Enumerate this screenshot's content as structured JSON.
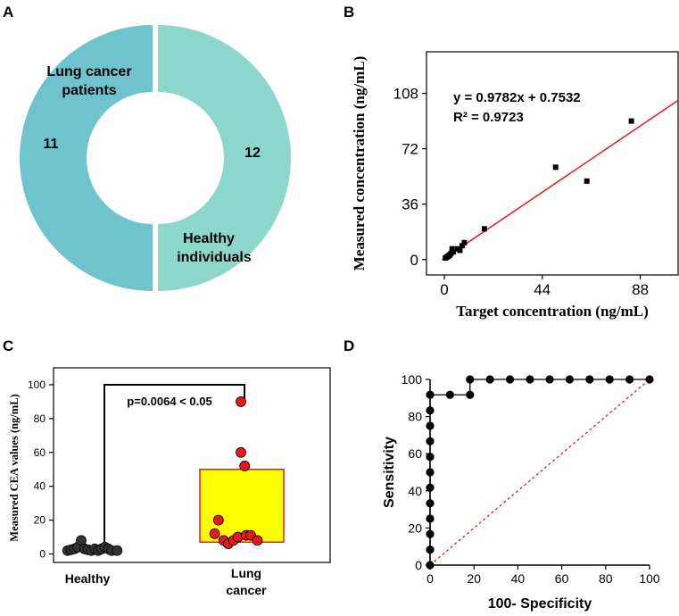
{
  "chart_data": [
    {
      "panel": "A",
      "type": "pie",
      "variant": "donut",
      "slices": [
        {
          "label_line1": "Lung cancer",
          "label_line2": "patients",
          "value": 11,
          "value_text": "11",
          "color": "#6EC3CD"
        },
        {
          "label_line1": "Healthy",
          "label_line2": "individuals",
          "value": 12,
          "value_text": "12",
          "color": "#8DD6CB"
        }
      ]
    },
    {
      "panel": "B",
      "type": "scatter",
      "xlabel": "Target concentration (ng/mL)",
      "ylabel": "Measured concentration (ng/mL)",
      "xlim": [
        -8,
        105
      ],
      "ylim": [
        -10,
        135
      ],
      "xticks": [
        0,
        44,
        88
      ],
      "yticks": [
        0,
        36,
        72,
        108
      ],
      "equation": "y = 0.9782x + 0.7532",
      "r2": "R² = 0.9723",
      "fit": {
        "slope": 0.9782,
        "intercept": 0.7532,
        "color": "#E8191B"
      },
      "points": [
        {
          "x": 0.5,
          "y": 1
        },
        {
          "x": 1,
          "y": 1.5
        },
        {
          "x": 1.5,
          "y": 2
        },
        {
          "x": 2,
          "y": 2.5
        },
        {
          "x": 2.5,
          "y": 3
        },
        {
          "x": 3,
          "y": 4
        },
        {
          "x": 4,
          "y": 5
        },
        {
          "x": 3.5,
          "y": 7
        },
        {
          "x": 6,
          "y": 7
        },
        {
          "x": 7,
          "y": 6
        },
        {
          "x": 8,
          "y": 9
        },
        {
          "x": 9,
          "y": 11
        },
        {
          "x": 18,
          "y": 20
        },
        {
          "x": 50,
          "y": 60
        },
        {
          "x": 64,
          "y": 51
        },
        {
          "x": 84,
          "y": 90
        }
      ]
    },
    {
      "panel": "C",
      "type": "scatter",
      "xlabel_categories": [
        {
          "line1": "Healthy",
          "line2": ""
        },
        {
          "line1": "Lung",
          "line2": "cancer"
        }
      ],
      "ylabel": "Measured CEA values (ng/mL)",
      "ylim": [
        -5,
        110
      ],
      "yticks": [
        0,
        20,
        40,
        60,
        80,
        100
      ],
      "p_value_text": "p=0.0064 < 0.05",
      "box": {
        "group": "Lung cancer",
        "low": 7,
        "high": 50,
        "fill": "#FFFF00",
        "stroke": "#E8191B"
      },
      "groups": [
        {
          "name": "Healthy",
          "color": "#333333",
          "points": [
            {
              "x": 0.05,
              "y": 2
            },
            {
              "x": 0.1,
              "y": 2.5
            },
            {
              "x": 0.15,
              "y": 3
            },
            {
              "x": 0.2,
              "y": 4
            },
            {
              "x": 0.25,
              "y": 8
            },
            {
              "x": 0.3,
              "y": 3
            },
            {
              "x": 0.35,
              "y": 2.5
            },
            {
              "x": 0.4,
              "y": 2
            },
            {
              "x": 0.45,
              "y": 3
            },
            {
              "x": 0.5,
              "y": 2
            },
            {
              "x": 0.55,
              "y": 3
            },
            {
              "x": 0.6,
              "y": 4
            },
            {
              "x": 0.65,
              "y": 3
            },
            {
              "x": 0.7,
              "y": 2
            },
            {
              "x": 0.78,
              "y": 2
            }
          ]
        },
        {
          "name": "Lung cancer",
          "color": "#E8191B",
          "points": [
            {
              "x": 0.15,
              "y": 12
            },
            {
              "x": 0.2,
              "y": 20
            },
            {
              "x": 0.27,
              "y": 8
            },
            {
              "x": 0.33,
              "y": 6
            },
            {
              "x": 0.4,
              "y": 8
            },
            {
              "x": 0.46,
              "y": 10
            },
            {
              "x": 0.5,
              "y": 90
            },
            {
              "x": 0.5,
              "y": 60
            },
            {
              "x": 0.55,
              "y": 52
            },
            {
              "x": 0.57,
              "y": 11
            },
            {
              "x": 0.63,
              "y": 11
            },
            {
              "x": 0.72,
              "y": 8
            }
          ]
        }
      ]
    },
    {
      "panel": "D",
      "type": "line",
      "xlabel": "100- Specificity",
      "ylabel": "Sensitivity",
      "xlim": [
        0,
        100
      ],
      "ylim": [
        0,
        100
      ],
      "xticks": [
        0,
        20,
        40,
        60,
        80,
        100
      ],
      "yticks": [
        0,
        20,
        40,
        60,
        80,
        100
      ],
      "roc_points": [
        {
          "x": 0,
          "y": 0
        },
        {
          "x": 0,
          "y": 8.3
        },
        {
          "x": 0,
          "y": 16.7
        },
        {
          "x": 0,
          "y": 25
        },
        {
          "x": 0,
          "y": 33.3
        },
        {
          "x": 0,
          "y": 41.7
        },
        {
          "x": 0,
          "y": 50
        },
        {
          "x": 0,
          "y": 58.3
        },
        {
          "x": 0,
          "y": 66.7
        },
        {
          "x": 0,
          "y": 75
        },
        {
          "x": 0,
          "y": 83.3
        },
        {
          "x": 0,
          "y": 91.7
        },
        {
          "x": 9.1,
          "y": 91.7
        },
        {
          "x": 18.2,
          "y": 91.7
        },
        {
          "x": 18.2,
          "y": 100
        },
        {
          "x": 27.3,
          "y": 100
        },
        {
          "x": 36.4,
          "y": 100
        },
        {
          "x": 45.5,
          "y": 100
        },
        {
          "x": 54.5,
          "y": 100
        },
        {
          "x": 63.6,
          "y": 100
        },
        {
          "x": 72.7,
          "y": 100
        },
        {
          "x": 81.8,
          "y": 100
        },
        {
          "x": 90.9,
          "y": 100
        },
        {
          "x": 100,
          "y": 100
        }
      ],
      "reference_line": {
        "from": [
          0,
          0
        ],
        "to": [
          100,
          100
        ],
        "color": "#E8191B",
        "style": "dashed"
      }
    }
  ],
  "panel_letters": {
    "a": "A",
    "b": "B",
    "c": "C",
    "d": "D"
  }
}
